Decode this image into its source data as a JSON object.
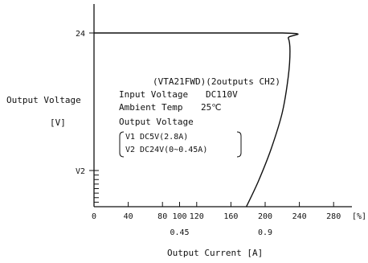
{
  "chart_data": {
    "type": "line",
    "title": "",
    "ylabel": "Output Voltage",
    "ylabel_unit": "[V]",
    "xlabel": "Output Current [A]",
    "x_ticks_percent": [
      "0",
      "40",
      "80",
      "100",
      "120",
      "160",
      "200",
      "240",
      "280"
    ],
    "x_unit_percent": "[%]",
    "x_ticks_current": [
      {
        "at_percent": 100,
        "label": "0.45"
      },
      {
        "at_percent": 200,
        "label": "0.9"
      }
    ],
    "y_ticks": [
      {
        "value": 24,
        "label": "24"
      },
      {
        "value": 5,
        "label": "V2"
      }
    ],
    "y_minor_tick_count": 7,
    "grid": false,
    "xlim_percent": [
      0,
      290
    ],
    "series": [
      {
        "points": [
          {
            "x": 0,
            "y": 24
          },
          {
            "x": 220,
            "y": 24
          },
          {
            "x": 227,
            "y": 23.3
          },
          {
            "x": 229,
            "y": 21.5
          },
          {
            "x": 227,
            "y": 18
          },
          {
            "x": 220,
            "y": 13
          },
          {
            "x": 207,
            "y": 8
          },
          {
            "x": 192,
            "y": 3.5
          },
          {
            "x": 178,
            "y": 0
          }
        ]
      }
    ],
    "annotations": {
      "model": "(VTA21FWD)(2outputs CH2)",
      "input_voltage_label": "Input Voltage",
      "input_voltage_value": "DC110V",
      "ambient_temp_label": "Ambient Temp",
      "ambient_temp_value": "25℃",
      "output_voltage_label": "Output Voltage",
      "v1": "V1 DC5V(2.8A)",
      "v2": "V2 DC24V(0~0.45A)"
    }
  }
}
